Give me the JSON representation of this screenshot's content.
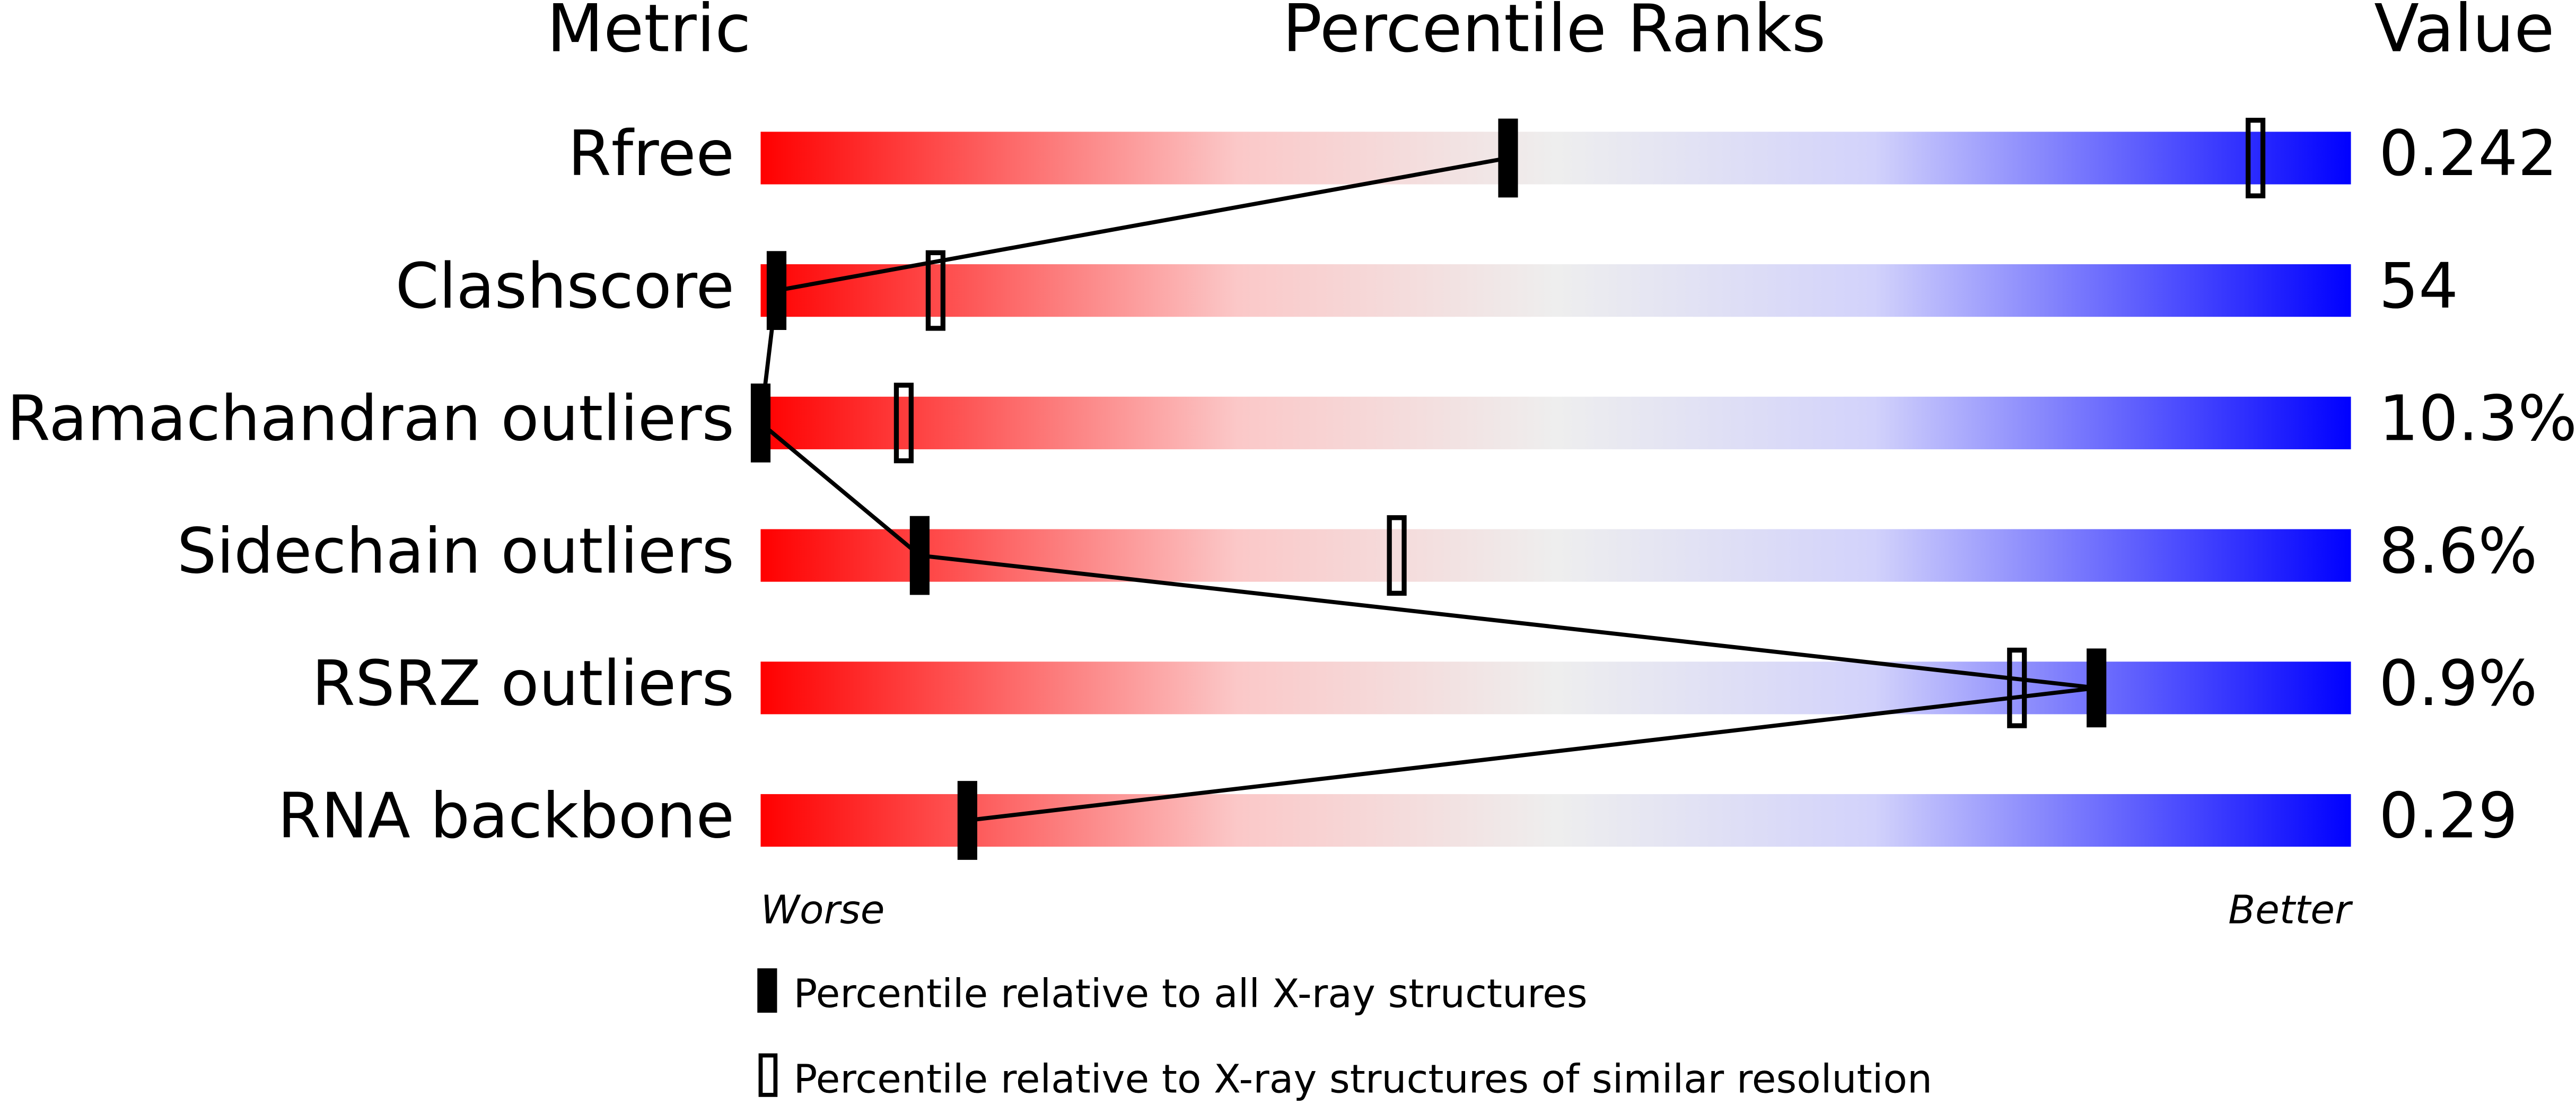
{
  "chart_data": {
    "type": "percentile",
    "headers": {
      "metric": "Metric",
      "ranks": "Percentile Ranks",
      "value": "Value"
    },
    "metrics": [
      {
        "name": "Rfree",
        "value": "0.242",
        "percentile_all": 47,
        "percentile_similar": 94
      },
      {
        "name": "Clashscore",
        "value": "54",
        "percentile_all": 1,
        "percentile_similar": 11
      },
      {
        "name": "Ramachandran outliers",
        "value": "10.3%",
        "percentile_all": 0,
        "percentile_similar": 9
      },
      {
        "name": "Sidechain outliers",
        "value": "8.6%",
        "percentile_all": 10,
        "percentile_similar": 40
      },
      {
        "name": "RSRZ outliers",
        "value": "0.9%",
        "percentile_all": 84,
        "percentile_similar": 79
      },
      {
        "name": "RNA backbone",
        "value": "0.29",
        "percentile_all": 13,
        "percentile_similar": null
      }
    ],
    "xlim": [
      0,
      100
    ],
    "worse_label": "Worse",
    "better_label": "Better",
    "legend": {
      "all": "Percentile relative to all X-ray structures",
      "similar": "Percentile relative to X-ray structures of similar resolution"
    }
  }
}
